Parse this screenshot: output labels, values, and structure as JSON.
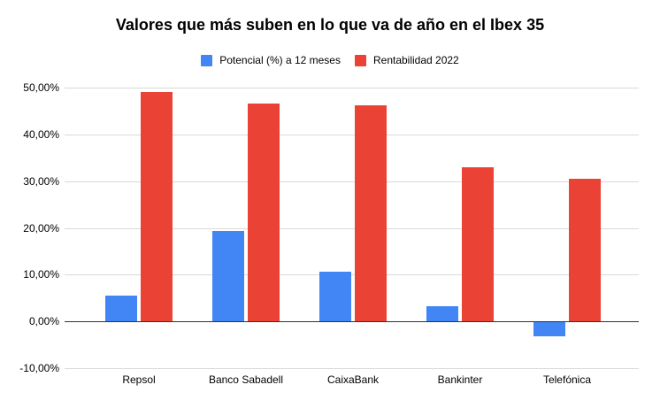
{
  "title": "Valores que más suben en lo que va de año en el Ibex 35",
  "legend": {
    "items": [
      {
        "label": "Potencial (%) a 12 meses",
        "color": "#4285F4"
      },
      {
        "label": "Rentabilidad 2022",
        "color": "#EA4335"
      }
    ]
  },
  "chart_data": {
    "type": "bar",
    "title": "Valores que más suben en lo que va de año en el Ibex 35",
    "categories": [
      "Repsol",
      "Banco Sabadell",
      "CaixaBank",
      "Bankinter",
      "Telefónica"
    ],
    "series": [
      {
        "name": "Potencial (%) a 12 meses",
        "color": "#4285F4",
        "values": [
          5.5,
          19.4,
          10.7,
          3.2,
          -3.0
        ]
      },
      {
        "name": "Rentabilidad 2022",
        "color": "#EA4335",
        "values": [
          49.0,
          46.5,
          46.2,
          33.0,
          30.5
        ]
      }
    ],
    "xlabel": "",
    "ylabel": "",
    "ylim": [
      -10,
      50
    ],
    "ytick_step": 10,
    "ytick_labels": [
      "50,00%",
      "40,00%",
      "30,00%",
      "20,00%",
      "10,00%",
      "0,00%",
      "-10,00%"
    ],
    "grid": true,
    "legend_position": "top",
    "value_unit": "percent"
  },
  "colors": {
    "background": "#ffffff",
    "gridline": "#d9d9d9",
    "axis_line": "#333333",
    "text": "#000000",
    "series_blue": "#4285F4",
    "series_red": "#EA4335"
  }
}
